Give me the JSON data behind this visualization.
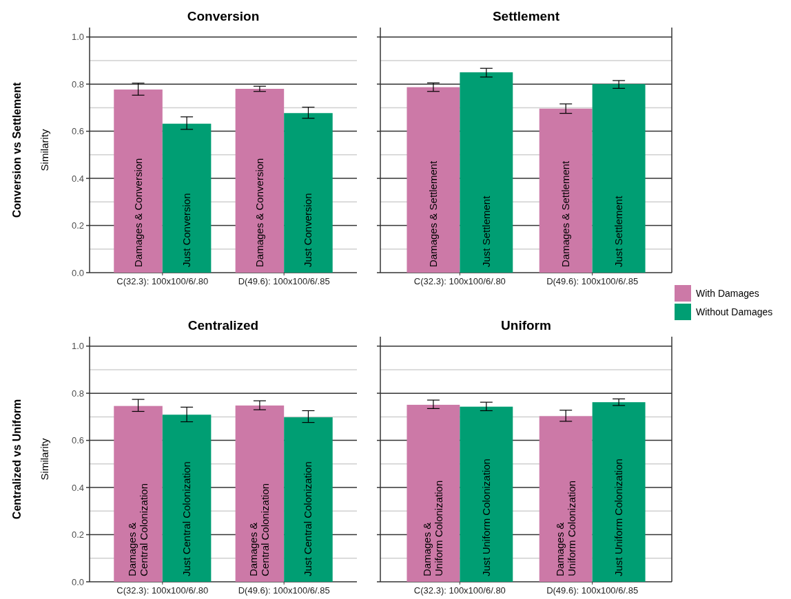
{
  "chart_data": [
    {
      "type": "bar",
      "title": "Conversion",
      "ylabel": "Similarity",
      "annotations": [
        "Conversion vs Settlement"
      ],
      "categories": [
        "C(32.3): 100x100/6/.80",
        "D(49.6): 100x100/6/.85"
      ],
      "ylim": [
        0,
        1.04
      ],
      "yticks": [
        {
          "value": 0,
          "label": "0.0"
        },
        {
          "value": 0.2,
          "label": "0.2"
        },
        {
          "value": 0.4,
          "label": "0.4"
        },
        {
          "value": 0.6,
          "label": "0.6"
        },
        {
          "value": 0.8,
          "label": "0.8"
        },
        {
          "value": 1,
          "label": "1.0"
        }
      ],
      "grid": "y",
      "series": [
        {
          "color": "#cc79a7",
          "values": [
            0.777,
            0.78
          ],
          "errors": [
            [
              0.753,
              0.804
            ],
            [
              0.769,
              0.791
            ]
          ],
          "value_labels": [
            "Damages & Conversion",
            "Damages & Conversion"
          ]
        },
        {
          "color": "#009e73",
          "values": [
            0.632,
            0.677
          ],
          "errors": [
            [
              0.608,
              0.661
            ],
            [
              0.655,
              0.702
            ]
          ],
          "value_labels": [
            "Just Conversion",
            "Just Conversion"
          ]
        }
      ]
    },
    {
      "type": "bar",
      "title": "Settlement",
      "categories": [
        "C(32.3): 100x100/6/.80",
        "D(49.6): 100x100/6/.85"
      ],
      "ylim": [
        0,
        1.04
      ],
      "yticks": [
        {
          "value": 0,
          "label": null
        },
        {
          "value": 0.2,
          "label": null
        },
        {
          "value": 0.4,
          "label": null
        },
        {
          "value": 0.6,
          "label": null
        },
        {
          "value": 0.8,
          "label": null
        },
        {
          "value": 1,
          "label": null
        }
      ],
      "grid": "y",
      "tick_labels": "x",
      "legend": "bottom right",
      "series": [
        {
          "name": "With Damages",
          "color": "#cc79a7",
          "values": [
            0.787,
            0.696
          ],
          "errors": [
            [
              0.769,
              0.805
            ],
            [
              0.676,
              0.716
            ]
          ],
          "value_labels": [
            "Damages & Settlement",
            "Damages & Settlement"
          ]
        },
        {
          "name": "Without Damages",
          "color": "#009e73",
          "values": [
            0.85,
            0.8
          ],
          "errors": [
            [
              0.83,
              0.867
            ],
            [
              0.782,
              0.815
            ]
          ],
          "value_labels": [
            "Just Settlement",
            "Just Settlement"
          ]
        }
      ]
    },
    {
      "type": "bar",
      "title": "Centralized",
      "ylabel": "Similarity",
      "annotations": [
        "Centralized vs Uniform"
      ],
      "categories": [
        "C(32.3): 100x100/6/.80",
        "D(49.6): 100x100/6/.85"
      ],
      "ylim": [
        0,
        1.04
      ],
      "yticks": [
        {
          "value": 0,
          "label": "0.0"
        },
        {
          "value": 0.2,
          "label": "0.2"
        },
        {
          "value": 0.4,
          "label": "0.4"
        },
        {
          "value": 0.6,
          "label": "0.6"
        },
        {
          "value": 0.8,
          "label": "0.8"
        },
        {
          "value": 1,
          "label": "1.0"
        }
      ],
      "grid": "y",
      "series": [
        {
          "color": "#cc79a7",
          "values": [
            0.746,
            0.748
          ],
          "errors": [
            [
              0.723,
              0.774
            ],
            [
              0.73,
              0.768
            ]
          ],
          "value_labels": [
            "Damages &\nCentral Colonization",
            "Damages &\nCentral Colonization"
          ]
        },
        {
          "color": "#009e73",
          "values": [
            0.709,
            0.698
          ],
          "errors": [
            [
              0.679,
              0.741
            ],
            [
              0.676,
              0.726
            ]
          ],
          "value_labels": [
            "Just Central Colonization",
            "Just Central Colonization"
          ]
        }
      ]
    },
    {
      "type": "bar",
      "title": "Uniform",
      "categories": [
        "C(32.3): 100x100/6/.80",
        "D(49.6): 100x100/6/.85"
      ],
      "ylim": [
        0,
        1.04
      ],
      "yticks": [
        {
          "value": 0,
          "label": null
        },
        {
          "value": 0.2,
          "label": null
        },
        {
          "value": 0.4,
          "label": null
        },
        {
          "value": 0.6,
          "label": null
        },
        {
          "value": 0.8,
          "label": null
        },
        {
          "value": 1,
          "label": null
        }
      ],
      "grid": "y",
      "tick_labels": "x",
      "series": [
        {
          "color": "#cc79a7",
          "values": [
            0.751,
            0.703
          ],
          "errors": [
            [
              0.735,
              0.771
            ],
            [
              0.681,
              0.728
            ]
          ],
          "value_labels": [
            "Damages &\nUniform Colonization",
            "Damages &\nUniform Colonization"
          ]
        },
        {
          "color": "#009e73",
          "values": [
            0.743,
            0.762
          ],
          "errors": [
            [
              0.726,
              0.762
            ],
            [
              0.748,
              0.776
            ]
          ],
          "value_labels": [
            "Just Uniform Colonization",
            "Just Uniform Colonization"
          ]
        }
      ]
    }
  ]
}
